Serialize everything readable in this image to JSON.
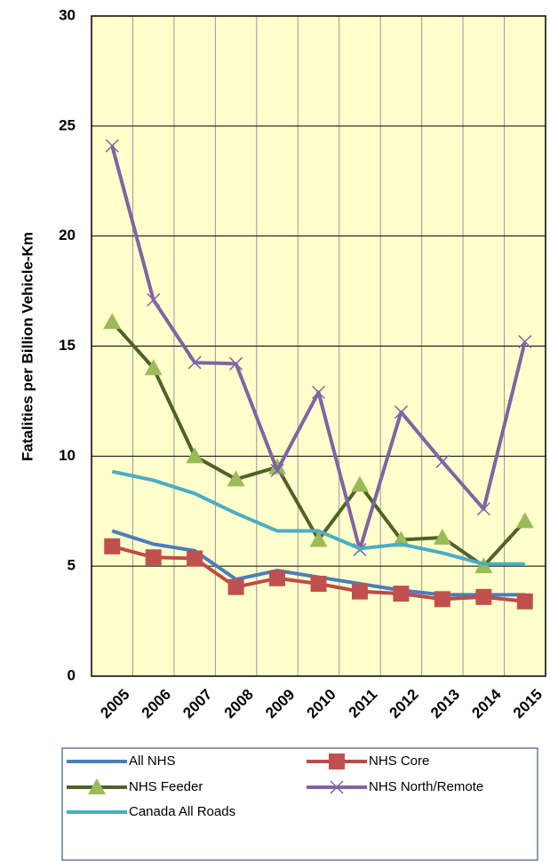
{
  "chart_data": {
    "type": "line",
    "y_label": "Fatalities per Billion Vehicle-Km",
    "categories": [
      "2005",
      "2006",
      "2007",
      "2008",
      "2009",
      "2010",
      "2011",
      "2012",
      "2013",
      "2014",
      "2015"
    ],
    "series": [
      {
        "name": "All NHS",
        "color": "#4a7ebb",
        "marker": "none",
        "values": [
          6.6,
          6.0,
          5.7,
          4.4,
          4.8,
          4.5,
          4.2,
          3.9,
          3.7,
          3.7,
          3.7
        ]
      },
      {
        "name": "NHS Core",
        "color": "#be4b48",
        "marker": "square",
        "marker_color": "#c0504d",
        "values": [
          5.9,
          5.4,
          5.35,
          4.05,
          4.45,
          4.2,
          3.85,
          3.75,
          3.5,
          3.6,
          3.4
        ]
      },
      {
        "name": "NHS Feeder",
        "color": "#4f6228",
        "marker": "triangle",
        "marker_color": "#9bbb59",
        "values": [
          16.1,
          14.0,
          10.0,
          8.95,
          9.5,
          6.2,
          8.7,
          6.2,
          6.3,
          5.0,
          7.05
        ]
      },
      {
        "name": "NHS North/Remote",
        "color": "#8064a2",
        "marker": "x",
        "marker_color": "#8064a2",
        "values": [
          24.1,
          17.1,
          14.25,
          14.2,
          9.35,
          12.9,
          5.75,
          12.0,
          9.75,
          7.6,
          15.2
        ]
      },
      {
        "name": "Canada All Roads",
        "color": "#4bacc6",
        "marker": "none",
        "values": [
          9.3,
          8.9,
          8.3,
          7.4,
          6.6,
          6.6,
          5.8,
          6.0,
          5.6,
          5.1,
          5.1
        ]
      }
    ],
    "ylim": [
      0,
      30
    ],
    "yticks": [
      0,
      5,
      10,
      15,
      20,
      25,
      30
    ],
    "grid": true,
    "background": "#ffffcc",
    "legend": "bottom"
  }
}
